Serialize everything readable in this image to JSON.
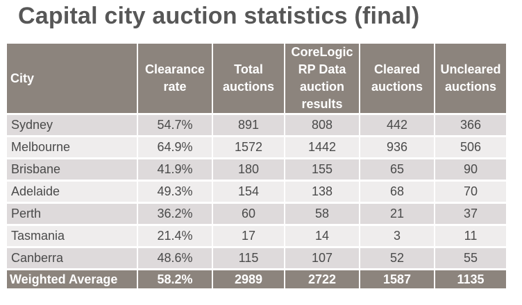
{
  "title": "Capital city auction statistics (final)",
  "table": {
    "headers": {
      "city": "City",
      "clearance_rate": "Clearance rate",
      "total_auctions": "Total auctions",
      "corelogic_results": "CoreLogic RP Data auction results",
      "cleared": "Cleared auctions",
      "uncleared": "Uncleared auctions"
    },
    "rows": [
      {
        "city": "Sydney",
        "clearance_rate": "54.7%",
        "total": "891",
        "results": "808",
        "cleared": "442",
        "uncleared": "366"
      },
      {
        "city": "Melbourne",
        "clearance_rate": "64.9%",
        "total": "1572",
        "results": "1442",
        "cleared": "936",
        "uncleared": "506"
      },
      {
        "city": "Brisbane",
        "clearance_rate": "41.9%",
        "total": "180",
        "results": "155",
        "cleared": "65",
        "uncleared": "90"
      },
      {
        "city": "Adelaide",
        "clearance_rate": "49.3%",
        "total": "154",
        "results": "138",
        "cleared": "68",
        "uncleared": "70"
      },
      {
        "city": "Perth",
        "clearance_rate": "36.2%",
        "total": "60",
        "results": "58",
        "cleared": "21",
        "uncleared": "37"
      },
      {
        "city": "Tasmania",
        "clearance_rate": "21.4%",
        "total": "17",
        "results": "14",
        "cleared": "3",
        "uncleared": "11"
      },
      {
        "city": "Canberra",
        "clearance_rate": "48.6%",
        "total": "115",
        "results": "107",
        "cleared": "52",
        "uncleared": "55"
      }
    ],
    "summary": {
      "city": "Weighted Average",
      "clearance_rate": "58.2%",
      "total": "2989",
      "results": "2722",
      "cleared": "1587",
      "uncleared": "1135"
    }
  },
  "colors": {
    "header_bg": "#8c847d",
    "row_odd": "#dedadb",
    "row_even": "#efeded",
    "title_text": "#575757"
  }
}
